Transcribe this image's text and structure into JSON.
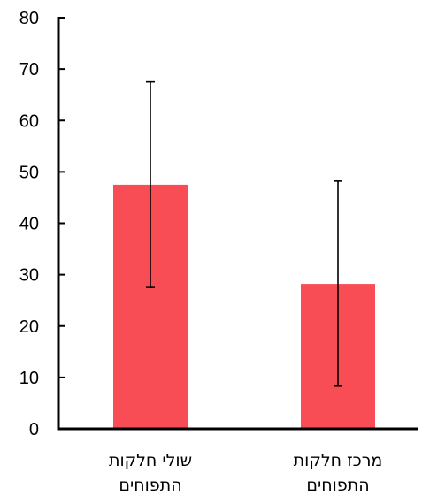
{
  "chart_data": {
    "type": "bar",
    "categories": [
      [
        "שולי חלקות",
        "התפוחים"
      ],
      [
        "מרכז חלקות",
        "התפוחים"
      ]
    ],
    "values": [
      47.5,
      28.2
    ],
    "error_bars": [
      {
        "low": 27.5,
        "high": 67.5
      },
      {
        "low": 8.3,
        "high": 48.2
      }
    ],
    "ylim": [
      0,
      80
    ],
    "yticks": [
      0,
      10,
      20,
      30,
      40,
      50,
      60,
      70,
      80
    ],
    "bar_color": "#F94D56",
    "grid": false,
    "legend": "none"
  }
}
